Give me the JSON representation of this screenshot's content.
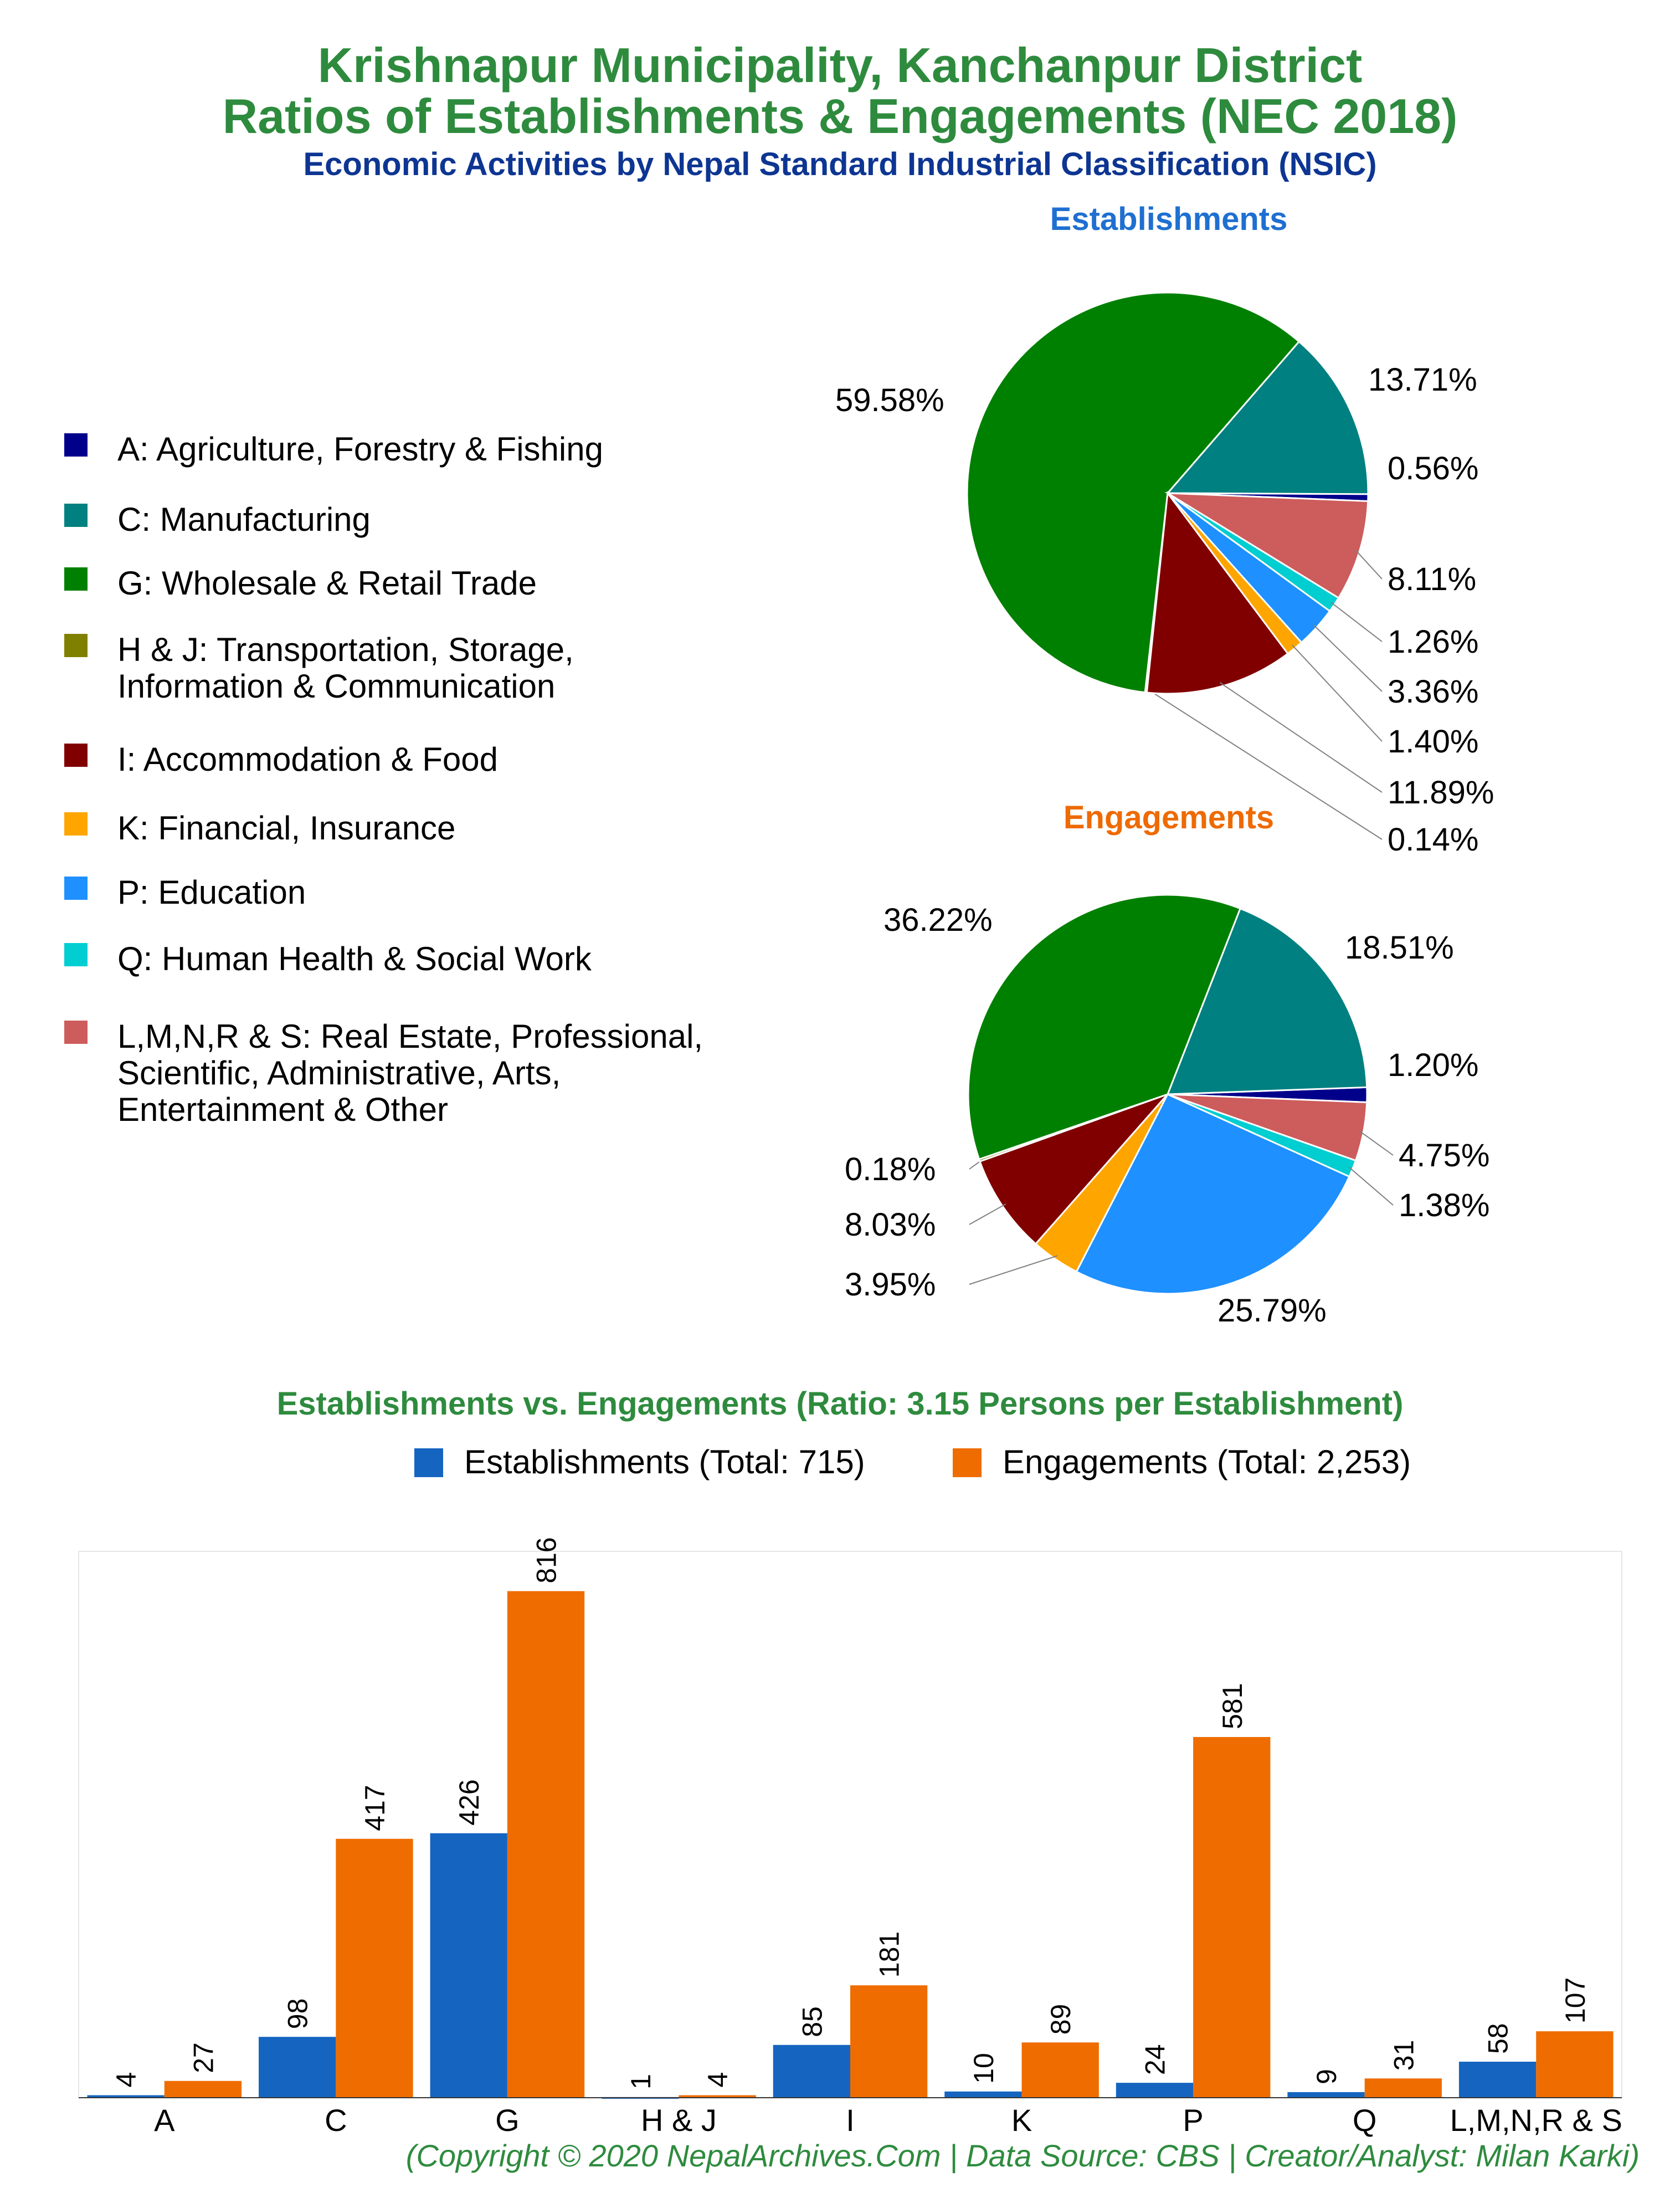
{
  "title_line1": "Krishnapur Municipality, Kanchanpur District",
  "title_line2": "Ratios of Establishments & Engagements (NEC 2018)",
  "subtitle": "Economic Activities by Nepal Standard Industrial Classification (NSIC)",
  "legend": [
    {
      "label": "A: Agriculture, Forestry & Fishing",
      "color": "#00008b"
    },
    {
      "label": "C: Manufacturing",
      "color": "#008080"
    },
    {
      "label": "G: Wholesale & Retail Trade",
      "color": "#008000"
    },
    {
      "label": "H & J: Transportation, Storage,\nInformation & Communication",
      "color": "#808000"
    },
    {
      "label": "I: Accommodation & Food",
      "color": "#800000"
    },
    {
      "label": "K: Financial, Insurance",
      "color": "#ffa500"
    },
    {
      "label": "P: Education",
      "color": "#1e90ff"
    },
    {
      "label": "Q: Human Health & Social Work",
      "color": "#00ced1"
    },
    {
      "label": "L,M,N,R & S: Real Estate, Professional,\nScientific, Administrative, Arts,\nEntertainment & Other",
      "color": "#cd5c5c"
    }
  ],
  "bar_title": "Establishments vs. Engagements (Ratio: 3.15 Persons per Establishment)",
  "bar_legend": [
    {
      "label": "Establishments (Total: 715)",
      "color": "#1565c0"
    },
    {
      "label": "Engagements (Total: 2,253)",
      "color": "#ef6c00"
    }
  ],
  "copyright": "(Copyright © 2020 NepalArchives.Com | Data Source: CBS | Creator/Analyst: Milan Karki)",
  "chart_data": [
    {
      "type": "pie",
      "title": "Establishments",
      "categories": [
        "A",
        "C",
        "G",
        "H & J",
        "I",
        "K",
        "P",
        "Q",
        "L,M,N,R & S"
      ],
      "values": [
        0.56,
        13.71,
        59.58,
        0.14,
        11.89,
        1.4,
        3.36,
        1.26,
        8.11
      ],
      "labels": [
        "0.56%",
        "13.71%",
        "59.58%",
        "0.14%",
        "11.89%",
        "1.40%",
        "3.36%",
        "1.26%",
        "8.11%"
      ]
    },
    {
      "type": "pie",
      "title": "Engagements",
      "categories": [
        "A",
        "C",
        "G",
        "H & J",
        "I",
        "K",
        "P",
        "Q",
        "L,M,N,R & S"
      ],
      "values": [
        1.2,
        18.51,
        36.22,
        0.18,
        8.03,
        3.95,
        25.79,
        1.38,
        4.75
      ],
      "labels": [
        "1.20%",
        "18.51%",
        "36.22%",
        "0.18%",
        "8.03%",
        "3.95%",
        "25.79%",
        "1.38%",
        "4.75%"
      ]
    },
    {
      "type": "bar",
      "title": "Establishments vs. Engagements (Ratio: 3.15 Persons per Establishment)",
      "categories": [
        "A",
        "C",
        "G",
        "H & J",
        "I",
        "K",
        "P",
        "Q",
        "L,M,N,R & S"
      ],
      "series": [
        {
          "name": "Establishments (Total: 715)",
          "values": [
            4,
            98,
            426,
            1,
            85,
            10,
            24,
            9,
            58
          ]
        },
        {
          "name": "Engagements (Total: 2,253)",
          "values": [
            27,
            417,
            816,
            4,
            181,
            89,
            581,
            31,
            107
          ]
        }
      ],
      "ylim": [
        0,
        880
      ],
      "grid": false
    }
  ]
}
